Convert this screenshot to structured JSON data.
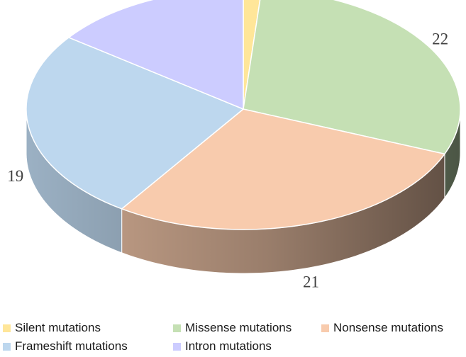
{
  "chart_data": {
    "type": "pie",
    "style": "3d",
    "title": "",
    "slices": [
      {
        "label": "Silent mutations",
        "value": 1,
        "color": "#FFE699"
      },
      {
        "label": "Missense mutations",
        "value": 22,
        "color": "#C5E0B4"
      },
      {
        "label": "Nonsense mutations",
        "value": 21,
        "color": "#F8CBAD"
      },
      {
        "label": "Frameshift mutations",
        "value": 19,
        "color": "#BDD7EE"
      },
      {
        "label": "Intron mutations",
        "value": 11,
        "color": "#CCCCFF"
      }
    ],
    "data_labels_shown": true,
    "legend_position": "bottom"
  }
}
